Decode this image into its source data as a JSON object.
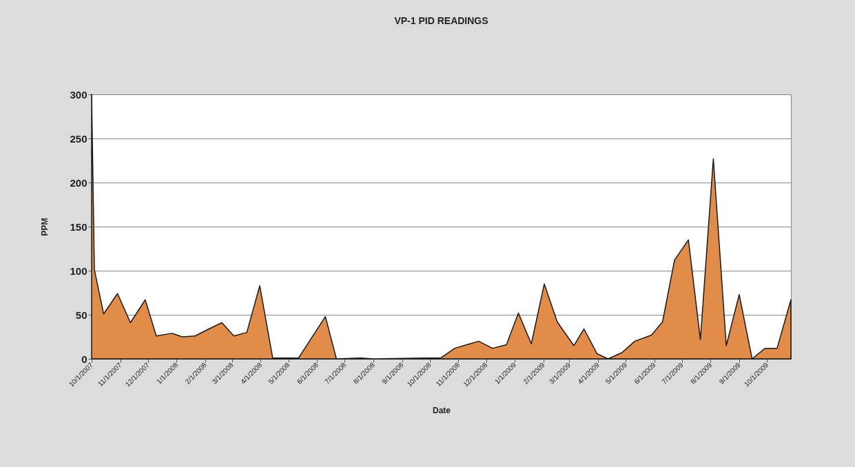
{
  "chart_data": {
    "type": "area",
    "title": "VP-1 PID READINGS",
    "xlabel": "Date",
    "ylabel": "PPM",
    "x": [
      "2007-10-01",
      "2007-10-04",
      "2007-10-14",
      "2007-10-29",
      "2007-11-12",
      "2007-11-28",
      "2007-12-10",
      "2007-12-27",
      "2008-01-07",
      "2008-01-21",
      "2008-02-05",
      "2008-02-19",
      "2008-03-03",
      "2008-03-17",
      "2008-03-31",
      "2008-04-14",
      "2008-05-12",
      "2008-06-10",
      "2008-06-22",
      "2008-07-18",
      "2008-08-01",
      "2008-09-28",
      "2008-10-13",
      "2008-10-28",
      "2008-11-10",
      "2008-11-23",
      "2008-12-08",
      "2008-12-23",
      "2009-01-05",
      "2009-01-19",
      "2009-02-02",
      "2009-02-16",
      "2009-03-06",
      "2009-03-17",
      "2009-03-31",
      "2009-04-12",
      "2009-04-27",
      "2009-05-11",
      "2009-05-29",
      "2009-06-10",
      "2009-06-23",
      "2009-07-08",
      "2009-07-21",
      "2009-08-04",
      "2009-08-18",
      "2009-09-01",
      "2009-09-15",
      "2009-09-29",
      "2009-10-12",
      "2009-10-27"
    ],
    "series": [
      {
        "color": "#e28c4a",
        "values": [
          300,
          101,
          51,
          74,
          41,
          67,
          26,
          29,
          25,
          26,
          34,
          41,
          26,
          30,
          83,
          1,
          1,
          48,
          0,
          1,
          0,
          1,
          1,
          12,
          16,
          20,
          12,
          16,
          52,
          17,
          85,
          42,
          15,
          34,
          6,
          0,
          7,
          20,
          27,
          42,
          112,
          135,
          22,
          227,
          15,
          73,
          0,
          12,
          12,
          67
        ]
      }
    ],
    "xlim": [
      "2007-10-01",
      "2009-10-27"
    ],
    "xticks": [
      {
        "value": "2007-10-01",
        "label": "10/1/2007"
      },
      {
        "value": "2007-11-01",
        "label": "11/1/2007"
      },
      {
        "value": "2007-12-01",
        "label": "12/1/2007"
      },
      {
        "value": "2008-01-01",
        "label": "1/1/2008"
      },
      {
        "value": "2008-02-01",
        "label": "2/1/2008"
      },
      {
        "value": "2008-03-01",
        "label": "3/1/2008"
      },
      {
        "value": "2008-04-01",
        "label": "4/1/2008"
      },
      {
        "value": "2008-05-01",
        "label": "5/1/2008"
      },
      {
        "value": "2008-06-01",
        "label": "6/1/2008"
      },
      {
        "value": "2008-07-01",
        "label": "7/1/2008"
      },
      {
        "value": "2008-08-01",
        "label": "8/1/2008"
      },
      {
        "value": "2008-09-01",
        "label": "9/1/2008"
      },
      {
        "value": "2008-10-01",
        "label": "10/1/2008"
      },
      {
        "value": "2008-11-01",
        "label": "11/1/2008"
      },
      {
        "value": "2008-12-01",
        "label": "12/1/2008"
      },
      {
        "value": "2009-01-01",
        "label": "1/1/2009"
      },
      {
        "value": "2009-02-01",
        "label": "2/1/2009"
      },
      {
        "value": "2009-03-01",
        "label": "3/1/2009"
      },
      {
        "value": "2009-04-01",
        "label": "4/1/2009"
      },
      {
        "value": "2009-05-01",
        "label": "5/1/2009"
      },
      {
        "value": "2009-06-01",
        "label": "6/1/2009"
      },
      {
        "value": "2009-07-01",
        "label": "7/1/2009"
      },
      {
        "value": "2009-08-01",
        "label": "8/1/2009"
      },
      {
        "value": "2009-09-01",
        "label": "9/1/2009"
      },
      {
        "value": "2009-10-01",
        "label": "10/1/2009"
      }
    ],
    "ylim": [
      0,
      300
    ],
    "yticks": [
      0,
      50,
      100,
      150,
      200,
      250,
      300
    ],
    "grid": "y"
  }
}
